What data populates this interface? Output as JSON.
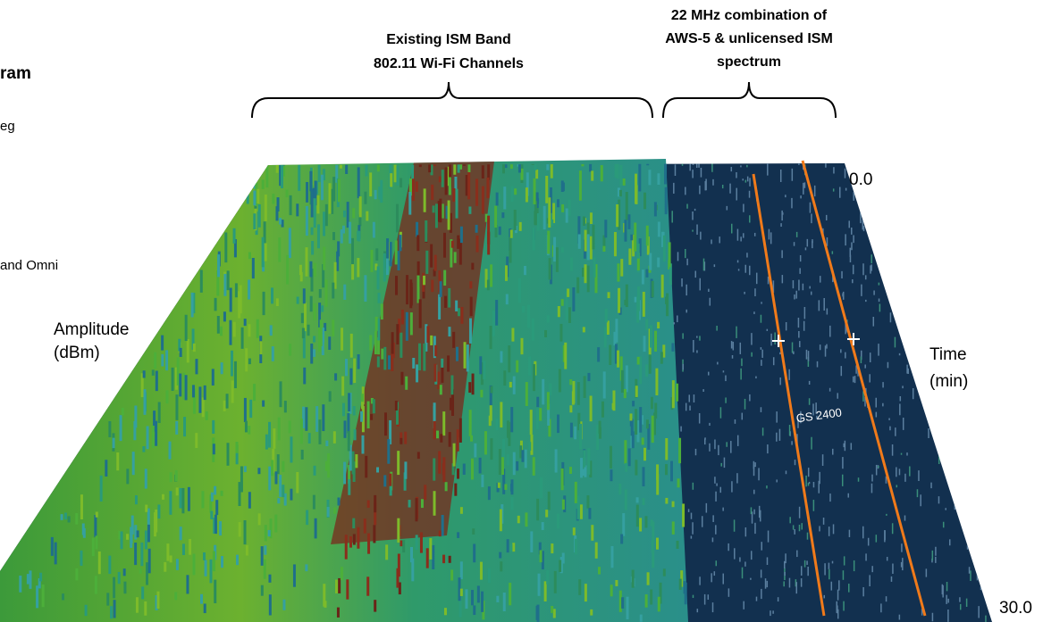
{
  "header": {
    "title": "ram"
  },
  "side_labels": [
    "eg",
    "and Omni"
  ],
  "annotations": {
    "left_bracket": [
      "Existing ISM Band",
      "802.11 Wi-Fi Channels"
    ],
    "right_bracket": [
      "22 MHz combination of",
      "AWS-5 & unlicensed ISM",
      "spectrum"
    ],
    "device": "GS 2400"
  },
  "axes": {
    "amplitude": [
      "Amplitude",
      "(dBm)"
    ],
    "time": [
      "Time",
      "(min)"
    ],
    "time_ticks": [
      "0.0",
      "30.0"
    ]
  }
}
